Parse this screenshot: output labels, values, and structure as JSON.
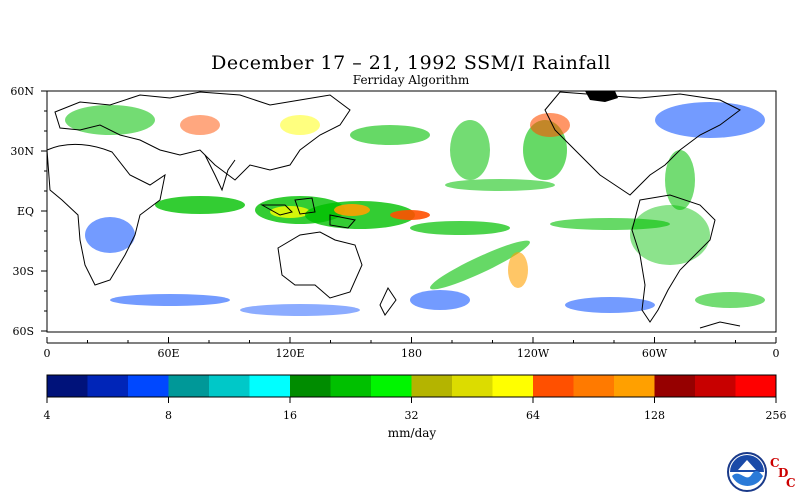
{
  "title": "December 17 – 21, 1992 SSM/I Rainfall",
  "subtitle": "Ferriday Algorithm",
  "map": {
    "projection": "equirectangular",
    "lon_range": [
      0,
      360
    ],
    "lat_range": [
      -60,
      60
    ],
    "lat_labels": [
      "60N",
      "30N",
      "EQ",
      "30S",
      "60S"
    ],
    "lon_labels": [
      "0",
      "60E",
      "120E",
      "180",
      "120W",
      "60W",
      "0"
    ],
    "background": "#ffffff",
    "coastline_color": "#000000",
    "land_ice_color": "#000000"
  },
  "colorbar": {
    "units": "mm/day",
    "tick_labels": [
      "4",
      "8",
      "16",
      "32",
      "64",
      "128",
      "256"
    ],
    "colors": [
      "#00127a",
      "#0025b8",
      "#0048ff",
      "#009898",
      "#00c8c8",
      "#00ffff",
      "#008c00",
      "#00c000",
      "#00f500",
      "#b4b400",
      "#dcdc00",
      "#ffff00",
      "#ff5000",
      "#ff7a00",
      "#ffa000",
      "#960000",
      "#c80000",
      "#ff0000"
    ]
  },
  "logo": {
    "name": "NOAA",
    "credit_letters": [
      "C",
      "D",
      "C"
    ]
  }
}
